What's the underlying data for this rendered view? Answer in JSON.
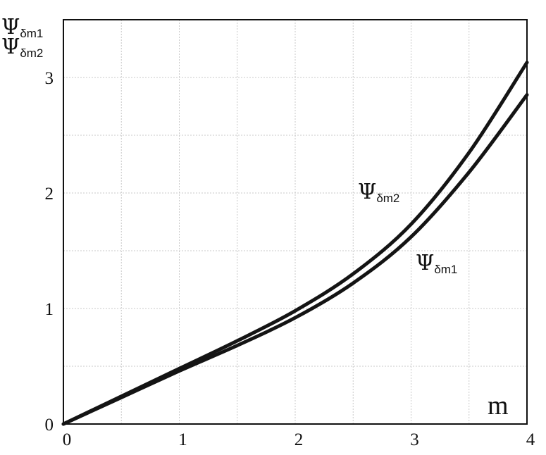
{
  "chart_data": {
    "type": "line",
    "title": "",
    "xlabel": "m",
    "ylabel": [
      {
        "symbol": "Ψ",
        "sub": "δm1"
      },
      {
        "symbol": "Ψ",
        "sub": "δm2"
      }
    ],
    "xlim": [
      0,
      4
    ],
    "ylim": [
      0,
      3.5
    ],
    "grid": true,
    "x_ticks": [
      "0",
      "1",
      "2",
      "3",
      "4"
    ],
    "y_ticks": [
      "0",
      "1",
      "2",
      "3"
    ],
    "series": [
      {
        "name": "Ψδm1",
        "symbol": "Ψ",
        "sub": "δm1",
        "x": [
          0,
          0.5,
          1,
          1.5,
          2,
          2.5,
          3,
          3.5,
          4
        ],
        "y": [
          0,
          0.23,
          0.46,
          0.68,
          0.92,
          1.22,
          1.62,
          2.18,
          2.85
        ]
      },
      {
        "name": "Ψδm2",
        "symbol": "Ψ",
        "sub": "δm2",
        "x": [
          0,
          0.5,
          1,
          1.5,
          2,
          2.5,
          3,
          3.5,
          4
        ],
        "y": [
          0,
          0.24,
          0.48,
          0.72,
          0.98,
          1.3,
          1.73,
          2.35,
          3.13
        ]
      }
    ]
  }
}
